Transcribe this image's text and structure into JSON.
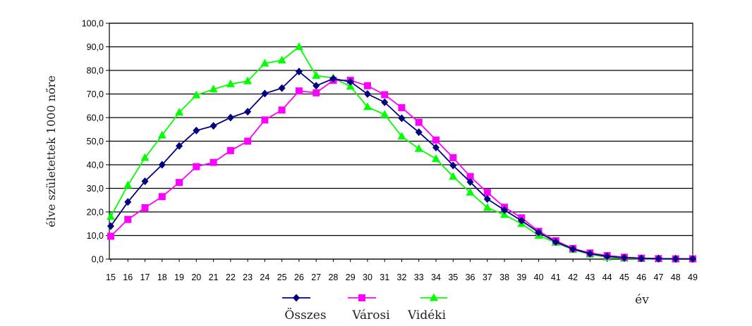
{
  "chart_data": {
    "type": "line",
    "title": "",
    "xlabel": "év",
    "ylabel": "élve születettek 1000 nőre",
    "x": [
      15,
      16,
      17,
      18,
      19,
      20,
      21,
      22,
      23,
      24,
      25,
      26,
      27,
      28,
      29,
      30,
      31,
      32,
      33,
      34,
      35,
      36,
      37,
      38,
      39,
      40,
      41,
      42,
      43,
      44,
      45,
      46,
      47,
      48,
      49
    ],
    "ylim": [
      0,
      100
    ],
    "yticks": [
      "0,0",
      "10,0",
      "20,0",
      "30,0",
      "40,0",
      "50,0",
      "60,0",
      "70,0",
      "80,0",
      "90,0",
      "100,0"
    ],
    "grid": "horizontal",
    "legend_position": "bottom",
    "series": [
      {
        "name": "Összes",
        "color": "#000080",
        "marker": "diamond",
        "values": [
          14.0,
          24.2,
          33.0,
          40.0,
          48.0,
          54.5,
          56.5,
          60.0,
          62.5,
          70.2,
          72.5,
          79.5,
          73.5,
          76.5,
          75.2,
          70.0,
          66.5,
          59.7,
          53.8,
          47.3,
          39.7,
          32.7,
          25.5,
          20.8,
          16.3,
          11.3,
          7.3,
          4.3,
          2.3,
          1.2,
          0.6,
          0.3,
          0.2,
          0.1,
          0.1
        ]
      },
      {
        "name": "Városi",
        "color": "#ff00ff",
        "marker": "square",
        "values": [
          9.7,
          16.8,
          21.8,
          26.5,
          32.5,
          39.2,
          41.0,
          46.0,
          50.0,
          59.0,
          63.2,
          71.3,
          70.5,
          75.8,
          75.8,
          73.5,
          69.7,
          64.2,
          58.0,
          50.5,
          43.0,
          35.0,
          28.3,
          22.0,
          17.5,
          11.8,
          7.8,
          4.5,
          2.6,
          1.5,
          0.8,
          0.4,
          0.2,
          0.1,
          0.1
        ]
      },
      {
        "name": "Vidéki",
        "color": "#00ff00",
        "marker": "triangle",
        "values": [
          18.0,
          31.3,
          43.0,
          52.5,
          62.2,
          69.5,
          72.0,
          74.2,
          75.5,
          83.0,
          84.3,
          90.0,
          77.8,
          76.8,
          73.2,
          64.5,
          61.3,
          52.0,
          46.8,
          42.5,
          35.0,
          28.3,
          21.8,
          18.8,
          15.0,
          10.0,
          7.0,
          4.0,
          2.0,
          0.8,
          0.3,
          0.1,
          0.1,
          0.1,
          0.1
        ]
      }
    ]
  }
}
